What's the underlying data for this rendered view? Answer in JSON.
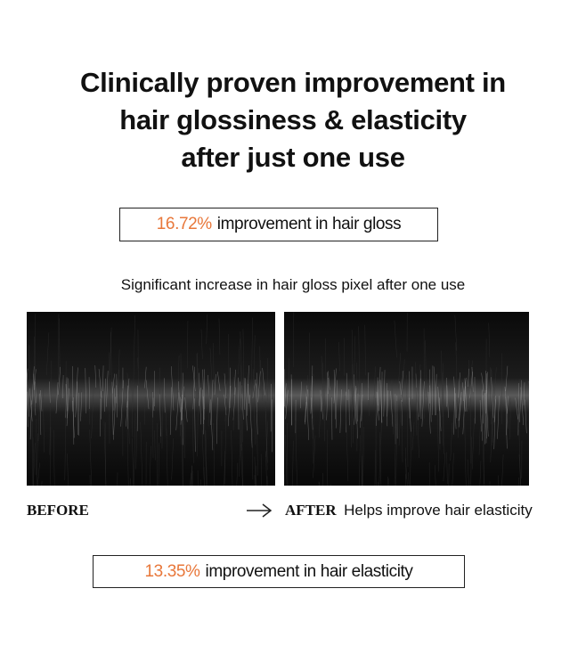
{
  "title_lines": [
    "Clinically proven improvement in",
    "hair glossiness & elasticity",
    "after just one use"
  ],
  "stats": [
    {
      "value": "16.72%",
      "text": "improvement in hair gloss"
    },
    {
      "value": "13.35%",
      "text": "improvement in hair elasticity"
    }
  ],
  "caption": "Significant increase in hair gloss pixel after one use",
  "before_label": "BEFORE",
  "after_label": "AFTER",
  "after_note": "Helps improve hair elasticity"
}
